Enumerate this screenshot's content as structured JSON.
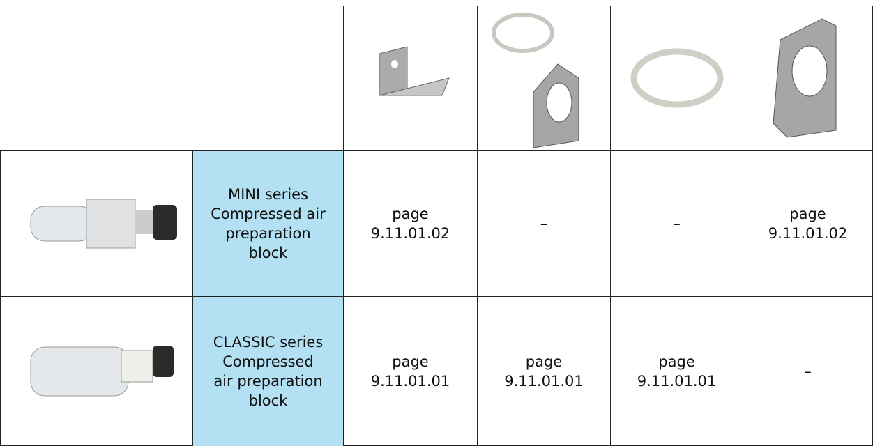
{
  "table": {
    "rows": [
      {
        "label": [
          "MINI series",
          "Compressed air",
          "preparation",
          "block"
        ],
        "cells": [
          [
            "page",
            "9.11.01.02"
          ],
          [
            "–"
          ],
          [
            "–"
          ],
          [
            "page",
            "9.11.01.02"
          ]
        ]
      },
      {
        "label": [
          "CLASSIC series",
          "Compressed",
          "air preparation",
          "block"
        ],
        "cells": [
          [
            "page",
            "9.11.01.01"
          ],
          [
            "page",
            "9.11.01.01"
          ],
          [
            "page",
            "9.11.01.01"
          ],
          [
            "–"
          ]
        ]
      }
    ]
  }
}
